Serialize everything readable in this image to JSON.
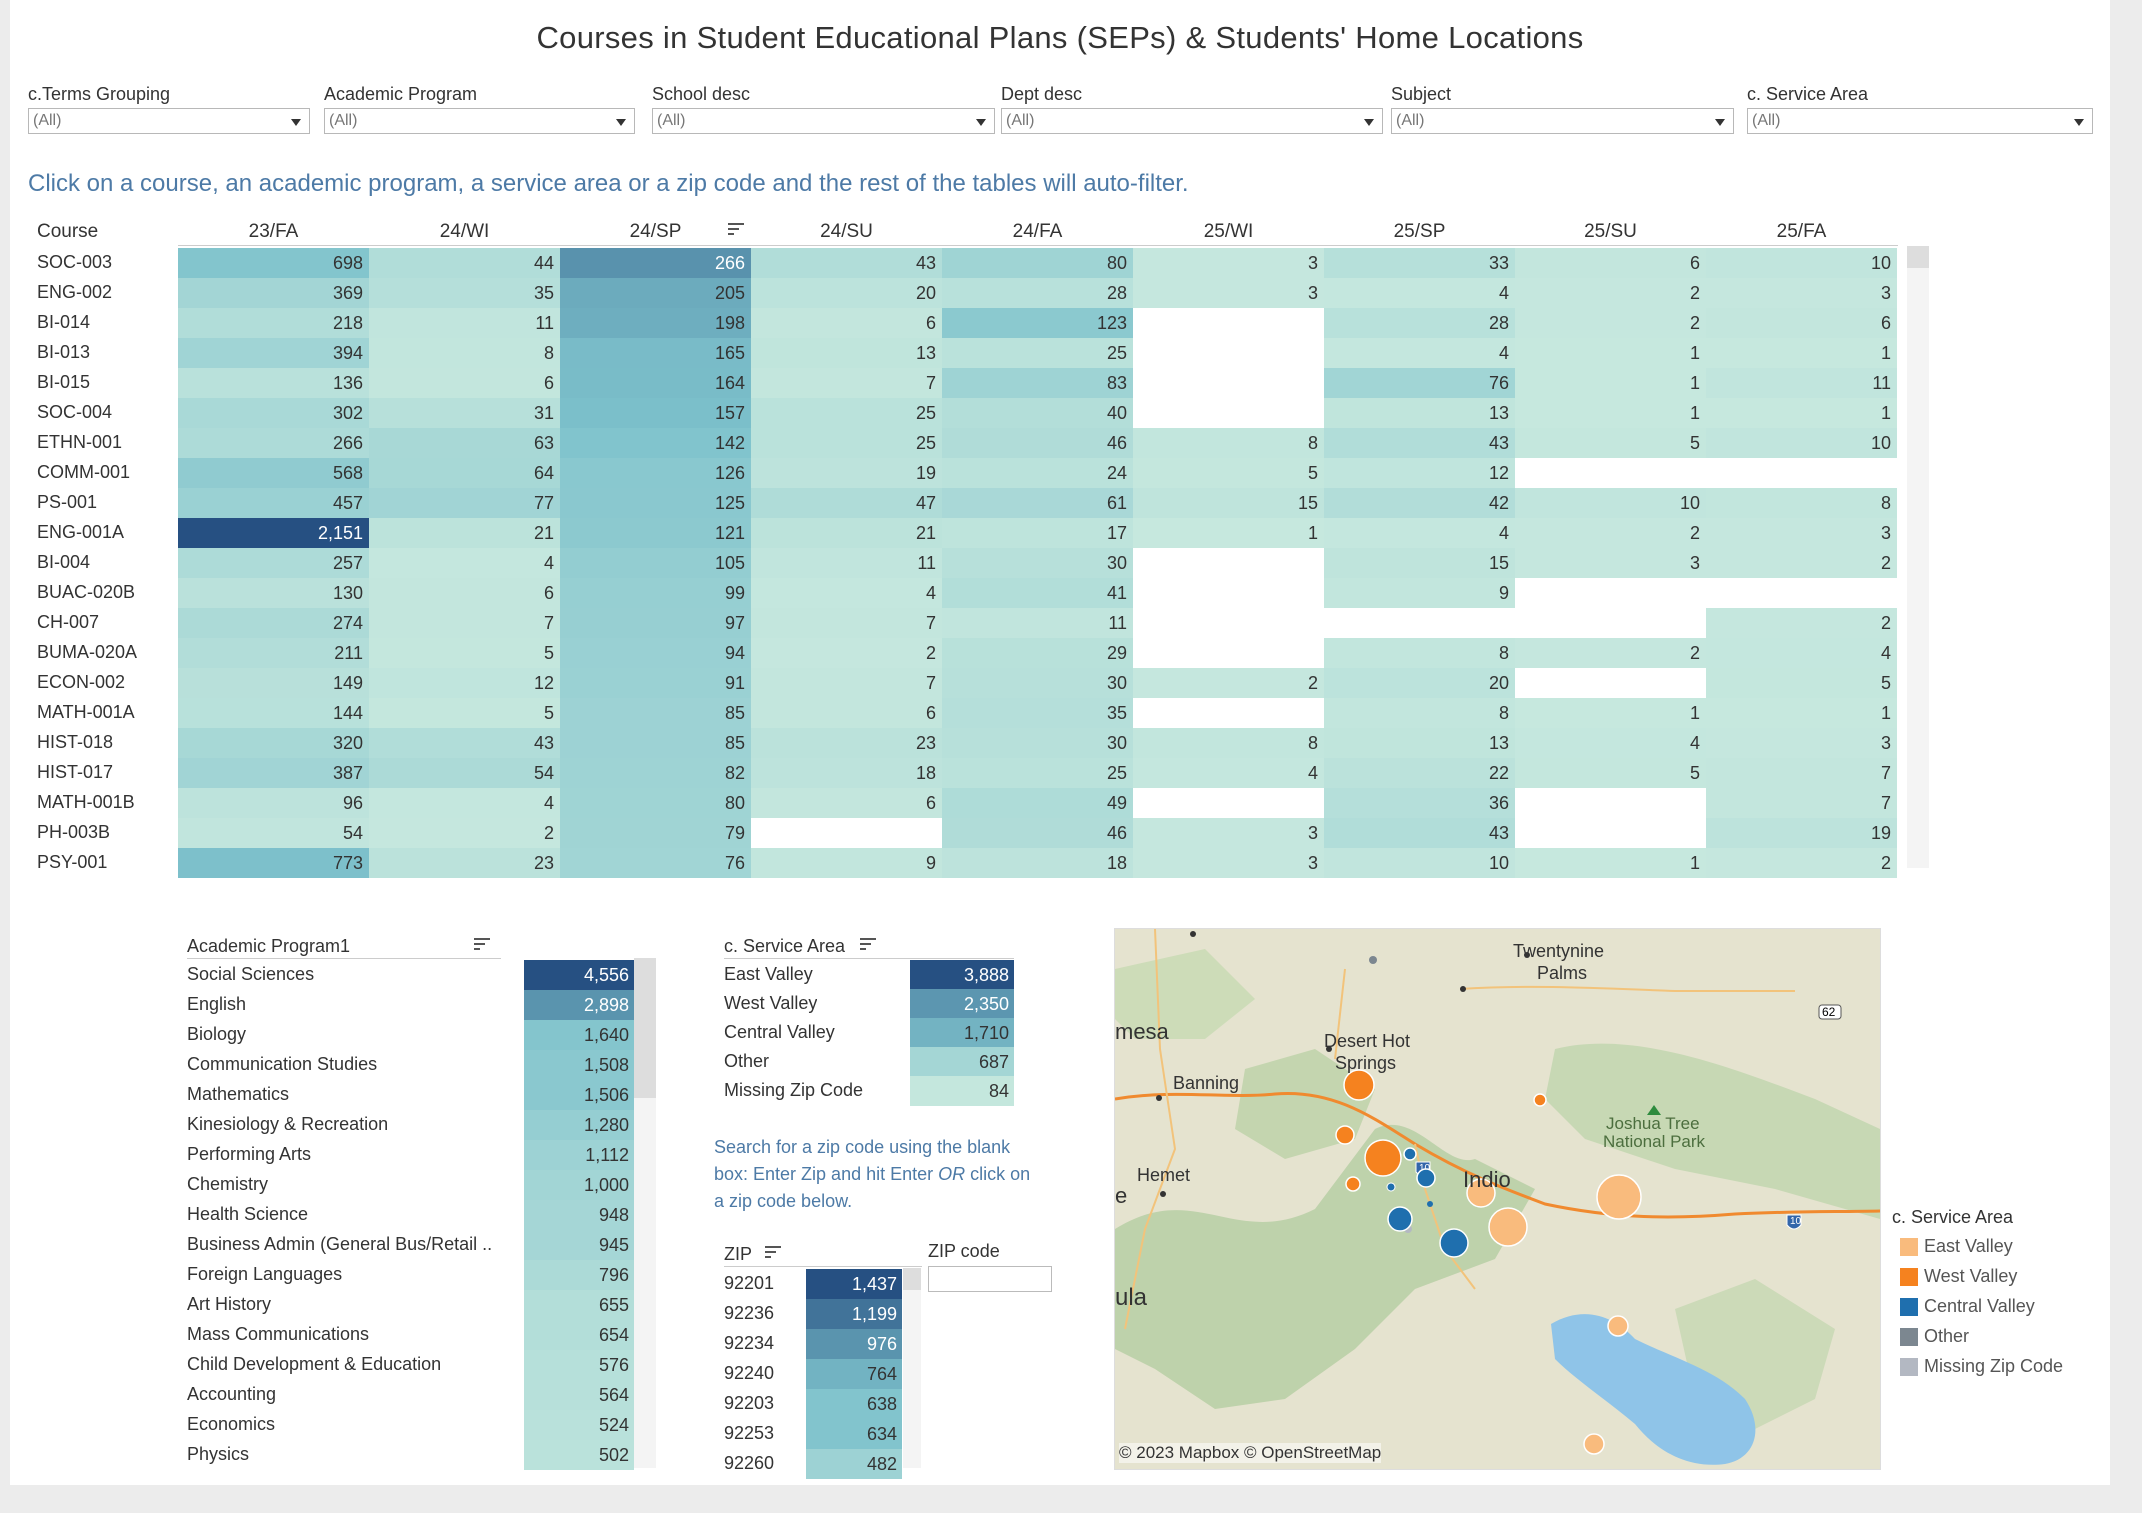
{
  "title": "Courses in Student Educational Plans (SEPs) & Students' Home Locations",
  "filters": [
    {
      "label": "c.Terms Grouping",
      "value": "(All)"
    },
    {
      "label": "Academic Program",
      "value": "(All)"
    },
    {
      "label": "School desc",
      "value": "(All)"
    },
    {
      "label": "Dept desc",
      "value": "(All)"
    },
    {
      "label": "Subject",
      "value": "(All)"
    },
    {
      "label": "c. Service Area",
      "value": "(All)"
    }
  ],
  "instruction": "Click on a course, an academic program, a service area or a zip code and the rest of the tables will auto-filter.",
  "course_table": {
    "course_header": "Course",
    "terms": [
      "23/FA",
      "24/WI",
      "24/SP",
      "24/SU",
      "24/FA",
      "25/WI",
      "25/SP",
      "25/SU",
      "25/FA"
    ],
    "rows": [
      {
        "course": "SOC-003",
        "values": [
          "698",
          "44",
          "266",
          "43",
          "80",
          "3",
          "33",
          "6",
          "10"
        ]
      },
      {
        "course": "ENG-002",
        "values": [
          "369",
          "35",
          "205",
          "20",
          "28",
          "3",
          "4",
          "2",
          "3"
        ]
      },
      {
        "course": "BI-014",
        "values": [
          "218",
          "11",
          "198",
          "6",
          "123",
          "",
          "28",
          "2",
          "6"
        ]
      },
      {
        "course": "BI-013",
        "values": [
          "394",
          "8",
          "165",
          "13",
          "25",
          "",
          "4",
          "1",
          "1"
        ]
      },
      {
        "course": "BI-015",
        "values": [
          "136",
          "6",
          "164",
          "7",
          "83",
          "",
          "76",
          "1",
          "11"
        ]
      },
      {
        "course": "SOC-004",
        "values": [
          "302",
          "31",
          "157",
          "25",
          "40",
          "",
          "13",
          "1",
          "1"
        ]
      },
      {
        "course": "ETHN-001",
        "values": [
          "266",
          "63",
          "142",
          "25",
          "46",
          "8",
          "43",
          "5",
          "10"
        ]
      },
      {
        "course": "COMM-001",
        "values": [
          "568",
          "64",
          "126",
          "19",
          "24",
          "5",
          "12",
          "",
          ""
        ]
      },
      {
        "course": "PS-001",
        "values": [
          "457",
          "77",
          "125",
          "47",
          "61",
          "15",
          "42",
          "10",
          "8"
        ]
      },
      {
        "course": "ENG-001A",
        "values": [
          "2,151",
          "21",
          "121",
          "21",
          "17",
          "1",
          "4",
          "2",
          "3"
        ]
      },
      {
        "course": "BI-004",
        "values": [
          "257",
          "4",
          "105",
          "11",
          "30",
          "",
          "15",
          "3",
          "2"
        ]
      },
      {
        "course": "BUAC-020B",
        "values": [
          "130",
          "6",
          "99",
          "4",
          "41",
          "",
          "9",
          "",
          ""
        ]
      },
      {
        "course": "CH-007",
        "values": [
          "274",
          "7",
          "97",
          "7",
          "11",
          "",
          "",
          "",
          "2"
        ]
      },
      {
        "course": "BUMA-020A",
        "values": [
          "211",
          "5",
          "94",
          "2",
          "29",
          "",
          "8",
          "2",
          "4"
        ]
      },
      {
        "course": "ECON-002",
        "values": [
          "149",
          "12",
          "91",
          "7",
          "30",
          "2",
          "20",
          "",
          "5"
        ]
      },
      {
        "course": "MATH-001A",
        "values": [
          "144",
          "5",
          "85",
          "6",
          "35",
          "",
          "8",
          "1",
          "1"
        ]
      },
      {
        "course": "HIST-018",
        "values": [
          "320",
          "43",
          "85",
          "23",
          "30",
          "8",
          "13",
          "4",
          "3"
        ]
      },
      {
        "course": "HIST-017",
        "values": [
          "387",
          "54",
          "82",
          "18",
          "25",
          "4",
          "22",
          "5",
          "7"
        ]
      },
      {
        "course": "MATH-001B",
        "values": [
          "96",
          "4",
          "80",
          "6",
          "49",
          "",
          "36",
          "",
          "7"
        ]
      },
      {
        "course": "PH-003B",
        "values": [
          "54",
          "2",
          "79",
          "",
          "46",
          "3",
          "43",
          "",
          "19"
        ]
      },
      {
        "course": "PSY-001",
        "values": [
          "773",
          "23",
          "76",
          "9",
          "18",
          "3",
          "10",
          "1",
          "2"
        ]
      }
    ]
  },
  "programs": {
    "header": "Academic Program1",
    "rows": [
      {
        "label": "Social Sciences",
        "value": "4,556",
        "n": 4556
      },
      {
        "label": "English",
        "value": "2,898",
        "n": 2898
      },
      {
        "label": "Biology",
        "value": "1,640",
        "n": 1640
      },
      {
        "label": "Communication Studies",
        "value": "1,508",
        "n": 1508
      },
      {
        "label": "Mathematics",
        "value": "1,506",
        "n": 1506
      },
      {
        "label": "Kinesiology & Recreation",
        "value": "1,280",
        "n": 1280
      },
      {
        "label": "Performing Arts",
        "value": "1,112",
        "n": 1112
      },
      {
        "label": "Chemistry",
        "value": "1,000",
        "n": 1000
      },
      {
        "label": "Health Science",
        "value": "948",
        "n": 948
      },
      {
        "label": "Business Admin (General Bus/Retail ..",
        "value": "945",
        "n": 945
      },
      {
        "label": "Foreign Languages",
        "value": "796",
        "n": 796
      },
      {
        "label": "Art History",
        "value": "655",
        "n": 655
      },
      {
        "label": "Mass Communications",
        "value": "654",
        "n": 654
      },
      {
        "label": "Child Development & Education",
        "value": "576",
        "n": 576
      },
      {
        "label": "Accounting",
        "value": "564",
        "n": 564
      },
      {
        "label": "Economics",
        "value": "524",
        "n": 524
      },
      {
        "label": "Physics",
        "value": "502",
        "n": 502
      }
    ]
  },
  "service_areas": {
    "header": "c. Service Area",
    "rows": [
      {
        "label": "East Valley",
        "value": "3,888",
        "n": 3888
      },
      {
        "label": "West Valley",
        "value": "2,350",
        "n": 2350
      },
      {
        "label": "Central Valley",
        "value": "1,710",
        "n": 1710
      },
      {
        "label": "Other",
        "value": "687",
        "n": 687
      },
      {
        "label": "Missing Zip Code",
        "value": "84",
        "n": 84
      }
    ]
  },
  "zip_search": {
    "help_line1": "Search for a zip code using the blank",
    "help_line2a": "box: Enter Zip and hit Enter ",
    "help_or": "OR",
    "help_line2b": " click on",
    "help_line3": "a zip code below.",
    "input_label": "ZIP code",
    "input_value": ""
  },
  "zips": {
    "header": "ZIP",
    "rows": [
      {
        "label": "92201",
        "value": "1,437",
        "n": 1437
      },
      {
        "label": "92236",
        "value": "1,199",
        "n": 1199
      },
      {
        "label": "92234",
        "value": "976",
        "n": 976
      },
      {
        "label": "92240",
        "value": "764",
        "n": 764
      },
      {
        "label": "92203",
        "value": "638",
        "n": 638
      },
      {
        "label": "92253",
        "value": "634",
        "n": 634
      },
      {
        "label": "92260",
        "value": "482",
        "n": 482
      }
    ]
  },
  "map": {
    "labels": {
      "twentynine": "Twentynine",
      "palms": "Palms",
      "mesa": "mesa",
      "banning": "Banning",
      "desert_hot": "Desert Hot",
      "springs": "Springs",
      "joshua1": "Joshua Tree",
      "joshua2": "National Park",
      "hemet": "Hemet",
      "indio": "Indio",
      "ula": "ula",
      "e": "e",
      "route62": "62",
      "i10": "10"
    },
    "credit": "© 2023 Mapbox  © OpenStreetMap"
  },
  "legend": {
    "title": "c. Service Area",
    "items": [
      {
        "label": "East Valley",
        "color": "#f9bb7d"
      },
      {
        "label": "West Valley",
        "color": "#f5821f"
      },
      {
        "label": "Central Valley",
        "color": "#1f6fae"
      },
      {
        "label": "Other",
        "color": "#7c8790"
      },
      {
        "label": "Missing Zip Code",
        "color": "#b3b8c2"
      }
    ]
  }
}
